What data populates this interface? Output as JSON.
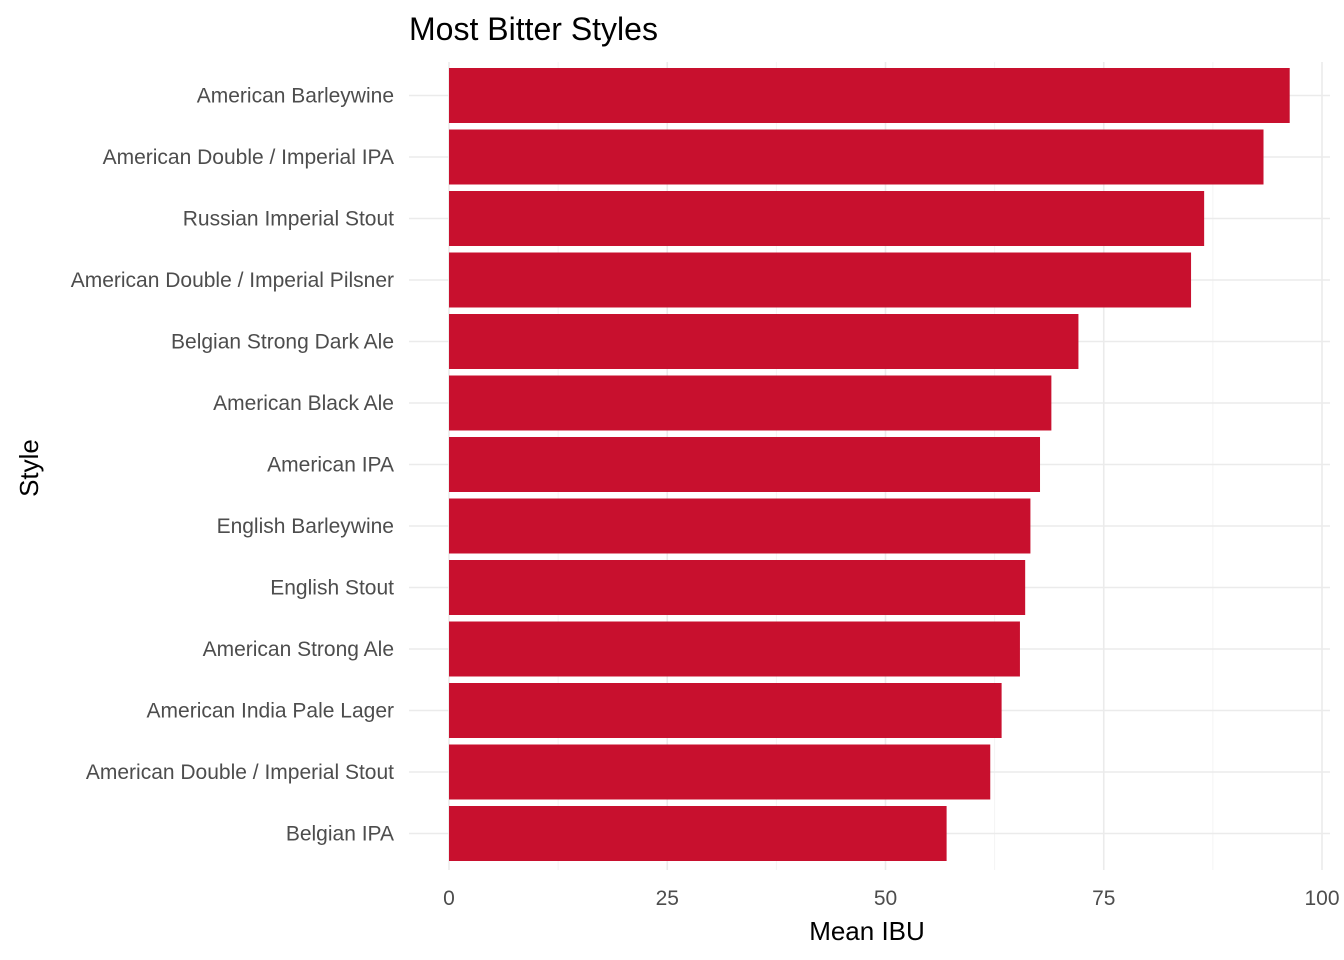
{
  "chart_data": {
    "type": "bar",
    "orientation": "horizontal",
    "title": "Most Bitter Styles",
    "xlabel": "Mean IBU",
    "ylabel": "Style",
    "xlim": [
      0,
      100
    ],
    "x_ticks": [
      0,
      25,
      50,
      75,
      100
    ],
    "grid": true,
    "legend": "none",
    "bar_color": "#c8102e",
    "categories": [
      "American Barleywine",
      "American Double / Imperial IPA",
      "Russian Imperial Stout",
      "American Double / Imperial Pilsner",
      "Belgian Strong Dark Ale",
      "American Black Ale",
      "American IPA",
      "English Barleywine",
      "English Stout",
      "American Strong Ale",
      "American India Pale Lager",
      "American Double / Imperial Stout",
      "Belgian IPA"
    ],
    "values": [
      96.3,
      93.3,
      86.5,
      85.0,
      72.1,
      69.0,
      67.7,
      66.6,
      66.0,
      65.4,
      63.3,
      62.0,
      57.0
    ]
  }
}
